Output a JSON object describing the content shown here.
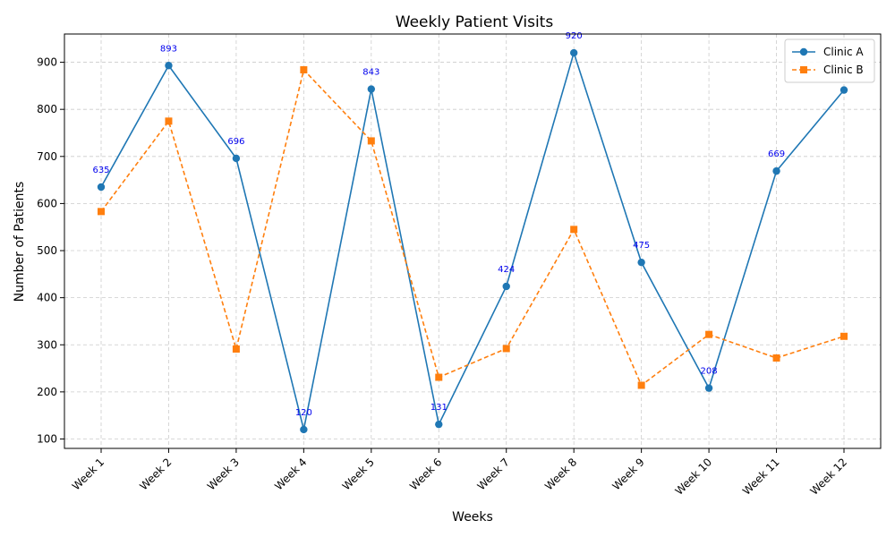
{
  "chart_data": {
    "type": "line",
    "title": "Weekly Patient Visits",
    "xlabel": "Weeks",
    "ylabel": "Number of Patients",
    "categories": [
      "Week 1",
      "Week 2",
      "Week 3",
      "Week 4",
      "Week 5",
      "Week 6",
      "Week 7",
      "Week 8",
      "Week 9",
      "Week 10",
      "Week 11",
      "Week 12"
    ],
    "ylim": [
      80,
      960
    ],
    "yticks": [
      100,
      200,
      300,
      400,
      500,
      600,
      700,
      800,
      900
    ],
    "grid": true,
    "legend_position": "top-right",
    "series": [
      {
        "name": "Clinic A",
        "color": "#1f77b4",
        "marker": "circle",
        "line_style": "solid",
        "values": [
          635,
          893,
          696,
          120,
          843,
          131,
          424,
          920,
          475,
          208,
          669,
          841
        ],
        "data_labels": [
          "635",
          "893",
          "696",
          "120",
          "843",
          "131",
          "424",
          "920",
          "475",
          "208",
          "669",
          ""
        ]
      },
      {
        "name": "Clinic B",
        "color": "#ff7f0e",
        "marker": "square",
        "line_style": "dashed",
        "values": [
          583,
          775,
          291,
          884,
          733,
          231,
          292,
          545,
          214,
          322,
          272,
          318
        ]
      }
    ]
  }
}
